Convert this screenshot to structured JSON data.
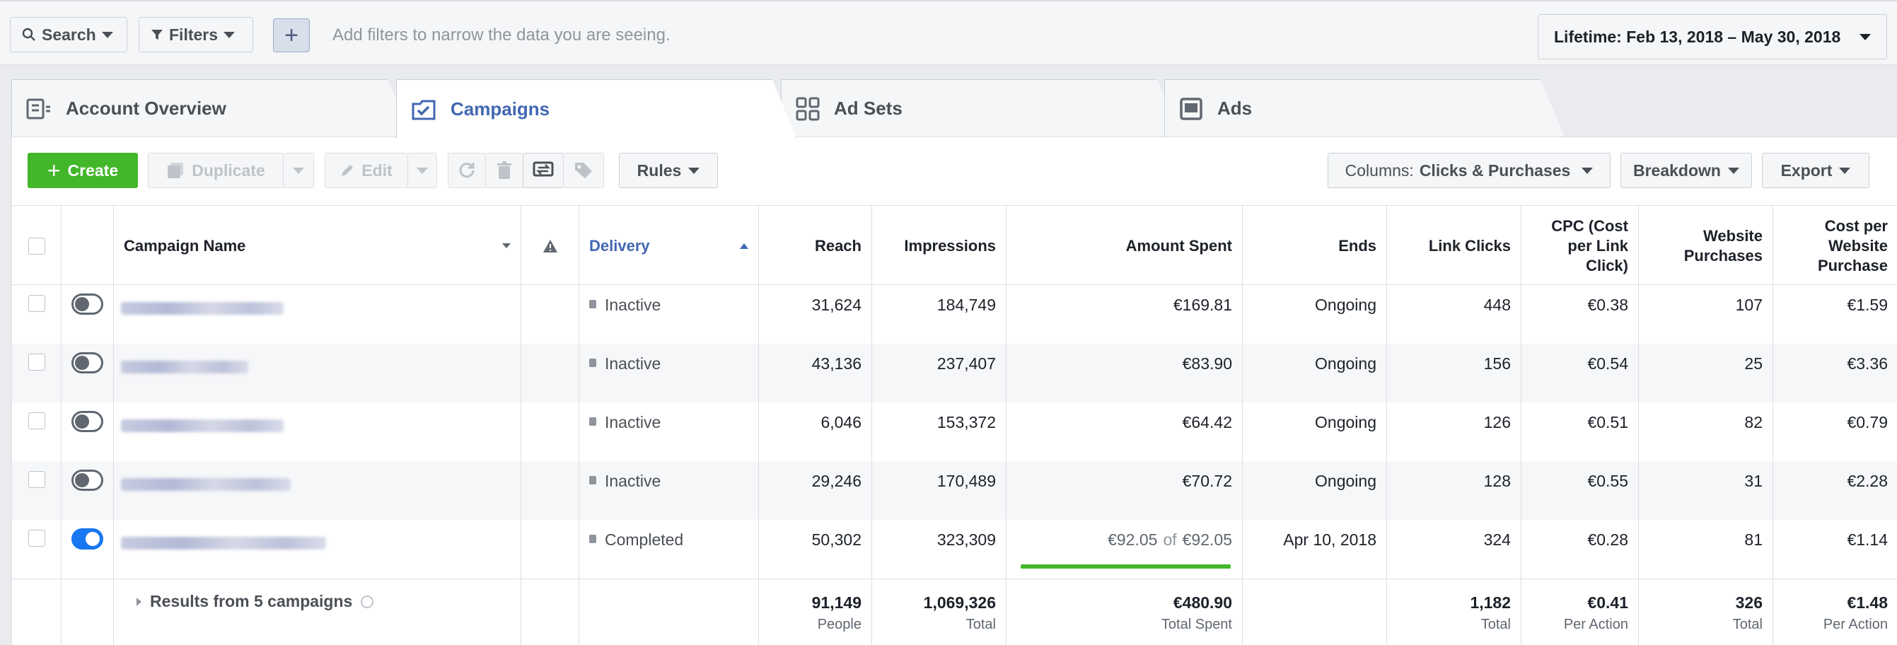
{
  "filterbar": {
    "search_label": "Search",
    "filters_label": "Filters",
    "add_label": "+",
    "placeholder": "Add filters to narrow the data you are seeing.",
    "date_range": "Lifetime: Feb 13, 2018 – May 30, 2018"
  },
  "tabs": [
    {
      "label": "Account Overview",
      "icon": "account-overview-icon"
    },
    {
      "label": "Campaigns",
      "icon": "campaign-folder-icon"
    },
    {
      "label": "Ad Sets",
      "icon": "grid-icon"
    },
    {
      "label": "Ads",
      "icon": "ad-icon"
    }
  ],
  "toolbar": {
    "create": "Create",
    "duplicate": "Duplicate",
    "edit": "Edit",
    "rules": "Rules",
    "columns_prefix": "Columns:",
    "columns_value": "Clicks & Purchases",
    "breakdown": "Breakdown",
    "export": "Export"
  },
  "table": {
    "headers": {
      "name": "Campaign Name",
      "delivery": "Delivery",
      "reach": "Reach",
      "impressions": "Impressions",
      "amount": "Amount Spent",
      "ends": "Ends",
      "clicks": "Link Clicks",
      "cpc": "CPC (Cost per Link Click)",
      "purchases": "Website Purchases",
      "cpp": "Cost per Website Purchase"
    },
    "rows": [
      {
        "on": false,
        "delivery": "Inactive",
        "reach": "31,624",
        "impressions": "184,749",
        "amount": "€169.81",
        "ends": "Ongoing",
        "clicks": "448",
        "cpc": "€0.38",
        "purchases": "107",
        "cpp": "€1.59"
      },
      {
        "on": false,
        "delivery": "Inactive",
        "reach": "43,136",
        "impressions": "237,407",
        "amount": "€83.90",
        "ends": "Ongoing",
        "clicks": "156",
        "cpc": "€0.54",
        "purchases": "25",
        "cpp": "€3.36"
      },
      {
        "on": false,
        "delivery": "Inactive",
        "reach": "6,046",
        "impressions": "153,372",
        "amount": "€64.42",
        "ends": "Ongoing",
        "clicks": "126",
        "cpc": "€0.51",
        "purchases": "82",
        "cpp": "€0.79"
      },
      {
        "on": false,
        "delivery": "Inactive",
        "reach": "29,246",
        "impressions": "170,489",
        "amount": "€70.72",
        "ends": "Ongoing",
        "clicks": "128",
        "cpc": "€0.55",
        "purchases": "31",
        "cpp": "€2.28"
      },
      {
        "on": true,
        "delivery": "Completed",
        "reach": "50,302",
        "impressions": "323,309",
        "amount": "€92.05",
        "amount_of": "of",
        "amount_budget": "€92.05",
        "budget_spent_fraction": 1.0,
        "ends": "Apr 10, 2018",
        "clicks": "324",
        "cpc": "€0.28",
        "purchases": "81",
        "cpp": "€1.14"
      }
    ],
    "summary": {
      "label": "Results from 5 campaigns",
      "reach": "91,149",
      "reach_unit": "People",
      "impressions": "1,069,326",
      "impressions_unit": "Total",
      "amount": "€480.90",
      "amount_unit": "Total Spent",
      "clicks": "1,182",
      "clicks_unit": "Total",
      "cpc": "€0.41",
      "cpc_unit": "Per Action",
      "purchases": "326",
      "purchases_unit": "Total",
      "cpp": "€1.48",
      "cpp_unit": "Per Action"
    }
  },
  "colors": {
    "create": "#42b72a",
    "accent": "#4267b2",
    "toggle_on": "#1877f2"
  }
}
